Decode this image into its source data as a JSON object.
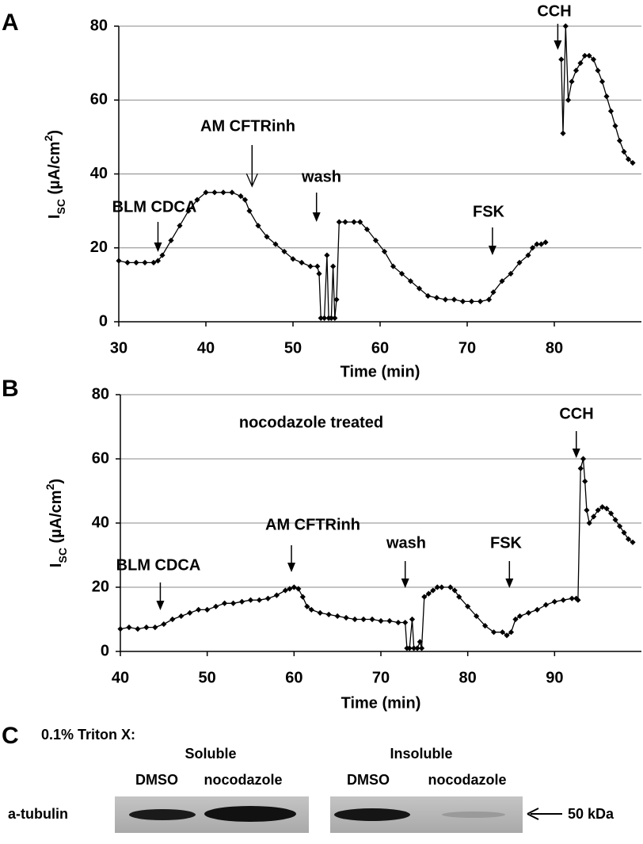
{
  "chart_data": [
    {
      "type": "line",
      "panel": "A",
      "x_label": "Time (min)",
      "y_label": [
        "I",
        "SC",
        " (µA/cm",
        "2",
        ")"
      ],
      "xlim": [
        30,
        90
      ],
      "xticks": [
        30,
        40,
        50,
        60,
        70,
        80
      ],
      "ylim": [
        0,
        80
      ],
      "yticks": [
        0,
        20,
        40,
        60,
        80
      ],
      "grid": true,
      "color": "#000000",
      "marker": "diamond",
      "x": [
        30,
        31,
        32,
        33,
        34,
        34.5,
        35,
        36,
        37,
        38,
        39,
        40,
        41,
        42,
        43,
        44,
        44.5,
        45,
        46,
        47,
        48,
        49,
        50,
        51,
        52,
        52.8,
        53,
        53.2,
        53.6,
        53.9,
        54.1,
        54.4,
        54.6,
        54.8,
        55,
        55.3,
        56,
        57,
        57.7,
        58.5,
        59.5,
        60.5,
        61.5,
        62.5,
        63.5,
        64.5,
        65.5,
        66.5,
        67.5,
        68.5,
        69.5,
        70.5,
        71.5,
        72.5,
        73,
        74,
        75,
        76,
        77,
        77.5,
        78,
        78.5,
        79,
        80,
        80.8,
        81,
        81.3,
        81.6,
        82,
        82.5,
        83,
        83.5,
        84,
        84.5,
        85,
        85.5,
        86,
        86.5,
        87,
        87.5,
        88,
        88.5,
        89
      ],
      "values": [
        16.5,
        16,
        16,
        16,
        16,
        16.5,
        18,
        22,
        26,
        30,
        33,
        35,
        35,
        35,
        35,
        34,
        33,
        30,
        26,
        23,
        21,
        19,
        17,
        16,
        15,
        15,
        13,
        1,
        1,
        18,
        1,
        1,
        15,
        1,
        6,
        27,
        27,
        27,
        27,
        25,
        22,
        19,
        15,
        13,
        11,
        9,
        7,
        6.5,
        6,
        6,
        5.5,
        5.5,
        5.5,
        6,
        8,
        11,
        13,
        16,
        18,
        20,
        21,
        21,
        21.5,
        null,
        71,
        51,
        80,
        60,
        65,
        68,
        70,
        72,
        72,
        71,
        68,
        65,
        61,
        57,
        53,
        49,
        46,
        44,
        43
      ],
      "annotations": [
        {
          "text": "BLM CDCA",
          "x": 34.5
        },
        {
          "text": "AM CFTRinh",
          "x": 45.3
        },
        {
          "text": "wash",
          "x": 52.7
        },
        {
          "text": "FSK",
          "x": 72.9
        },
        {
          "text": "CCH",
          "x": 80.4
        }
      ]
    },
    {
      "type": "line",
      "panel": "B",
      "subtitle": "nocodazole treated",
      "x_label": "Time (min)",
      "y_label": [
        "I",
        "SC",
        " (µA/cm",
        "2",
        ")"
      ],
      "xlim": [
        40,
        100
      ],
      "xticks": [
        40,
        50,
        60,
        70,
        80,
        90
      ],
      "ylim": [
        0,
        80
      ],
      "yticks": [
        0,
        20,
        40,
        60,
        80
      ],
      "grid": true,
      "color": "#000000",
      "marker": "diamond",
      "x": [
        40,
        41,
        42,
        43,
        44,
        45,
        46,
        47,
        48,
        49,
        50,
        51,
        52,
        53,
        54,
        55,
        56,
        57,
        58,
        59,
        59.5,
        60,
        60.5,
        61,
        61.5,
        62,
        63,
        64,
        65,
        66,
        67,
        68,
        69,
        70,
        71,
        72,
        72.8,
        73,
        73.3,
        73.6,
        73.8,
        74.2,
        74.5,
        74.7,
        75,
        75.5,
        76,
        76.5,
        77,
        78,
        78.5,
        79,
        80,
        81,
        82,
        83,
        84,
        84.5,
        85,
        85.5,
        86,
        87,
        88,
        89,
        90,
        91,
        92,
        92.5,
        92.7,
        93,
        93.3,
        93.5,
        93.7,
        94,
        94.5,
        95,
        95.5,
        96,
        96.5,
        97,
        97.5,
        98,
        98.5,
        99
      ],
      "values": [
        7,
        7.5,
        7,
        7.5,
        7.5,
        8.5,
        10,
        11,
        12,
        13,
        13,
        14,
        15,
        15,
        15.5,
        16,
        16,
        16.5,
        17.5,
        19,
        19.5,
        20,
        19.5,
        17,
        14,
        13,
        12,
        11.5,
        11,
        10.5,
        10,
        10,
        10,
        9.5,
        9.5,
        9,
        9,
        1,
        1,
        10,
        1,
        1,
        3,
        1,
        17,
        18,
        19,
        20,
        20,
        20,
        19,
        17,
        14,
        11,
        8,
        6,
        6,
        5,
        6,
        10,
        11,
        12,
        13,
        14.5,
        15.5,
        16,
        16.5,
        16.5,
        16,
        57,
        60,
        53,
        44,
        40,
        42,
        44,
        45,
        44.5,
        43,
        41,
        39,
        37,
        35,
        34
      ],
      "annotations": [
        {
          "text": "BLM CDCA",
          "x": 44.6
        },
        {
          "text": "AM CFTRinh",
          "x": 59.7
        },
        {
          "text": "wash",
          "x": 72.8
        },
        {
          "text": "FSK",
          "x": 84.8
        },
        {
          "text": "CCH",
          "x": 92.5
        }
      ]
    }
  ],
  "blot": {
    "panel": "C",
    "title": "0.1% Triton X:",
    "groups": [
      {
        "label": "Soluble",
        "lanes": [
          "DMSO",
          "nocodazole"
        ]
      },
      {
        "label": "Insoluble",
        "lanes": [
          "DMSO",
          "nocodazole"
        ]
      }
    ],
    "row_label": "a-tubulin",
    "marker": "50 kDa"
  }
}
